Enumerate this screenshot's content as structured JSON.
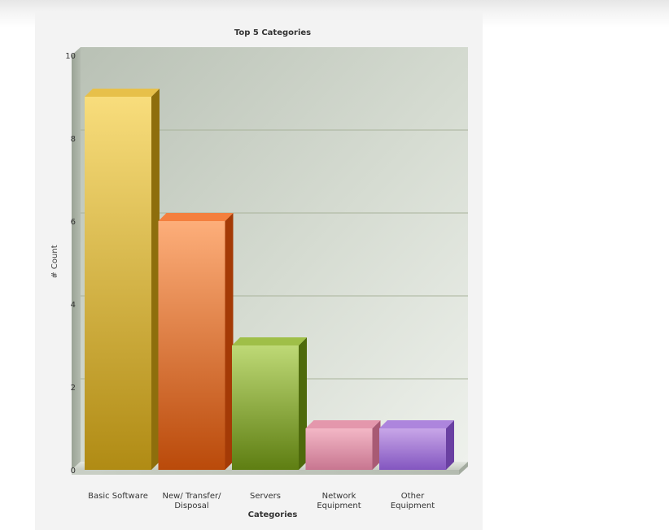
{
  "chart_data": {
    "type": "bar",
    "title": "Top 5 Categories",
    "xlabel": "Categories",
    "ylabel": "# Count",
    "ylim": [
      0,
      10
    ],
    "yticks": [
      0,
      2,
      4,
      6,
      8,
      10
    ],
    "grid": true,
    "style": "3d-column",
    "categories": [
      "Basic Software",
      "New/ Transfer/ Disposal",
      "Servers",
      "Network Equipment",
      "Other Equipment"
    ],
    "category_label_lines": [
      [
        "Basic Software"
      ],
      [
        "New/ Transfer/",
        "Disposal"
      ],
      [
        "Servers"
      ],
      [
        "Network",
        "Equipment"
      ],
      [
        "Other",
        "Equipment"
      ]
    ],
    "values": [
      9,
      6,
      3,
      1,
      1
    ],
    "colors": [
      {
        "top": "#f8dd7c",
        "bottom": "#b08b14",
        "side": "#8e6e0c",
        "cap": "#e7c04a"
      },
      {
        "top": "#fdae7a",
        "bottom": "#ba4a0a",
        "side": "#a43a06",
        "cap": "#f47f3e"
      },
      {
        "top": "#bed976",
        "bottom": "#5e7e12",
        "side": "#4e6a0c",
        "cap": "#9fbf48"
      },
      {
        "top": "#f3b7c6",
        "bottom": "#c87690",
        "side": "#a85a74",
        "cap": "#e497ac"
      },
      {
        "top": "#c8a6e8",
        "bottom": "#8356c0",
        "side": "#6a40a2",
        "cap": "#ad85dd"
      }
    ]
  }
}
